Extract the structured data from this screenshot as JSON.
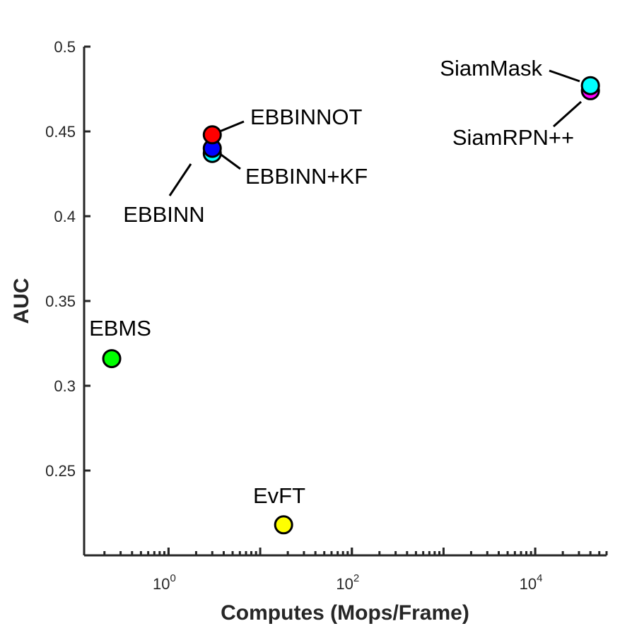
{
  "chart_data": {
    "type": "scatter",
    "xlabel": "Computes (Mops/Frame)",
    "ylabel": "AUC",
    "x_scale": "log",
    "xlim": [
      0.12,
      60000
    ],
    "ylim": [
      0.2,
      0.5
    ],
    "x_ticks": [
      {
        "value": 1,
        "base": "10",
        "exp": "0"
      },
      {
        "value": 100,
        "base": "10",
        "exp": "2"
      },
      {
        "value": 10000,
        "base": "10",
        "exp": "4"
      }
    ],
    "y_ticks": [
      {
        "value": 0.25,
        "label": "0.25"
      },
      {
        "value": 0.3,
        "label": "0.3"
      },
      {
        "value": 0.35,
        "label": "0.35"
      },
      {
        "value": 0.4,
        "label": "0.4"
      },
      {
        "value": 0.45,
        "label": "0.45"
      },
      {
        "value": 0.5,
        "label": "0.5"
      }
    ],
    "grid": false,
    "legend": "none",
    "points": [
      {
        "name": "EBMS",
        "label": "EBMS",
        "x": 0.24,
        "y": 0.316,
        "color": "#00ff00"
      },
      {
        "name": "EBBINN",
        "label": "EBBINN",
        "x": 3.0,
        "y": 0.437,
        "color": "#00ffff"
      },
      {
        "name": "EBBINN+KF",
        "label": "EBBINN+KF",
        "x": 3.0,
        "y": 0.44,
        "color": "#0000ff"
      },
      {
        "name": "EBBINNOT",
        "label": "EBBINNOT",
        "x": 3.0,
        "y": 0.448,
        "color": "#ff0000"
      },
      {
        "name": "EvFT",
        "label": "EvFT",
        "x": 18,
        "y": 0.218,
        "color": "#ffff00"
      },
      {
        "name": "SiamRPN++",
        "label": "SiamRPN++",
        "x": 40000,
        "y": 0.474,
        "color": "#ff00ff"
      },
      {
        "name": "SiamMask",
        "label": "SiamMask",
        "x": 40000,
        "y": 0.477,
        "color": "#00ffff"
      }
    ]
  }
}
